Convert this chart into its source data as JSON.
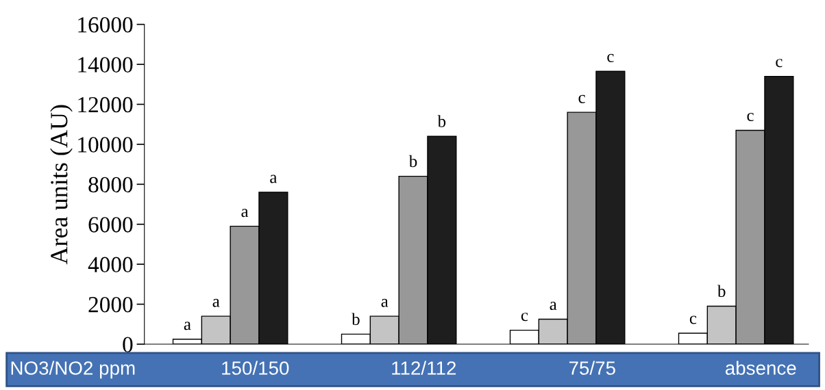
{
  "chart_data": {
    "type": "bar",
    "xlabel": "NO3/NO2 ppm",
    "ylabel": "Area units (AU)",
    "categories": [
      "150/150",
      "112/112",
      "75/75",
      "absence"
    ],
    "series": [
      {
        "color": "#ffffff",
        "values": [
          250,
          500,
          700,
          550
        ],
        "value_labels": [
          "a",
          "b",
          "c",
          "c"
        ]
      },
      {
        "color": "#c4c4c4",
        "values": [
          1400,
          1400,
          1250,
          1900
        ],
        "value_labels": [
          "a",
          "a",
          "a",
          "b"
        ]
      },
      {
        "color": "#989898",
        "values": [
          5900,
          8400,
          11600,
          10700
        ],
        "value_labels": [
          "a",
          "b",
          "c",
          "c"
        ]
      },
      {
        "color": "#1e1e1e",
        "values": [
          7600,
          10400,
          13650,
          13400
        ],
        "value_labels": [
          "a",
          "b",
          "c",
          "c"
        ]
      }
    ],
    "ylim": [
      0,
      16000
    ],
    "yticks": [
      0,
      2000,
      4000,
      6000,
      8000,
      10000,
      12000,
      14000,
      16000
    ],
    "grid": false,
    "legend": false
  }
}
